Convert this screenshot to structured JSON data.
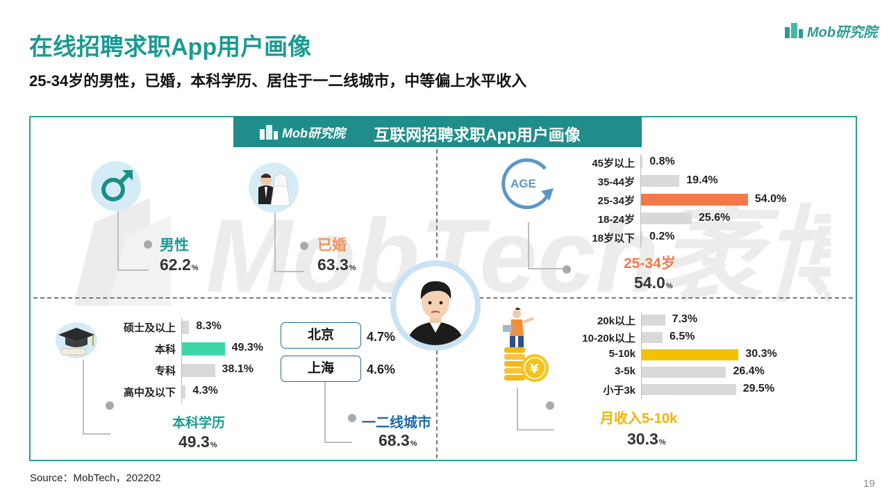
{
  "header": {
    "title": "在线招聘求职App用户画像",
    "subtitle": "25-34岁的男性，已婚，本科学历、居住于一二线城市，中等偏上水平收入",
    "brand_logo": "Mob研究院"
  },
  "panel": {
    "banner_logo": "Mob研究院",
    "banner_title": "互联网招聘求职App用户画像",
    "watermark_text": "MobTech袤博"
  },
  "gender": {
    "label": "男性",
    "value": "62.2",
    "unit": "%"
  },
  "marriage": {
    "label": "已婚",
    "value": "63.3",
    "unit": "%"
  },
  "age_summary": {
    "icon_text": "AGE",
    "label": "25-34岁",
    "value": "54.0",
    "unit": "%"
  },
  "education_summary": {
    "label": "本科学历",
    "value": "49.3",
    "unit": "%"
  },
  "city_summary": {
    "label": "一二线城市",
    "value": "68.3",
    "unit": "%"
  },
  "income_summary": {
    "label": "月收入5-10k",
    "value": "30.3",
    "unit": "%"
  },
  "cities": [
    {
      "name": "北京",
      "value": "4.7%"
    },
    {
      "name": "上海",
      "value": "4.6%"
    }
  ],
  "colors": {
    "teal_title": "#1a9a93",
    "banner": "#1f8e8a",
    "age_highlight": "#f4784a",
    "education_highlight": "#3ed6a8",
    "income_highlight": "#f5c000",
    "city_label": "#1e6aa8",
    "bar_default": "#d9d9d9"
  },
  "chart_data": [
    {
      "type": "bar",
      "orientation": "horizontal",
      "name": "age",
      "categories": [
        "45岁以上",
        "35-44岁",
        "25-34岁",
        "18-24岁",
        "18岁以下"
      ],
      "values": [
        0.8,
        19.4,
        54.0,
        25.6,
        0.2
      ],
      "labels": [
        "0.8%",
        "19.4%",
        "54.0%",
        "25.6%",
        "0.2%"
      ],
      "highlight_index": 2,
      "highlight_color": "#f4784a"
    },
    {
      "type": "bar",
      "orientation": "horizontal",
      "name": "education",
      "categories": [
        "硕士及以上",
        "本科",
        "专科",
        "高中及以下"
      ],
      "values": [
        8.3,
        49.3,
        38.1,
        4.3
      ],
      "labels": [
        "8.3%",
        "49.3%",
        "38.1%",
        "4.3%"
      ],
      "highlight_index": 1,
      "highlight_color": "#3ed6a8"
    },
    {
      "type": "bar",
      "orientation": "horizontal",
      "name": "income",
      "categories": [
        "20k以上",
        "10-20k以上",
        "5-10k",
        "3-5k",
        "小于3k"
      ],
      "values": [
        7.3,
        6.5,
        30.3,
        26.4,
        29.5
      ],
      "labels": [
        "7.3%",
        "6.5%",
        "30.3%",
        "26.4%",
        "29.5%"
      ],
      "highlight_index": 2,
      "highlight_color": "#f5c000"
    }
  ],
  "footer": {
    "source": "Source：MobTech，202202",
    "page_number": "19"
  }
}
